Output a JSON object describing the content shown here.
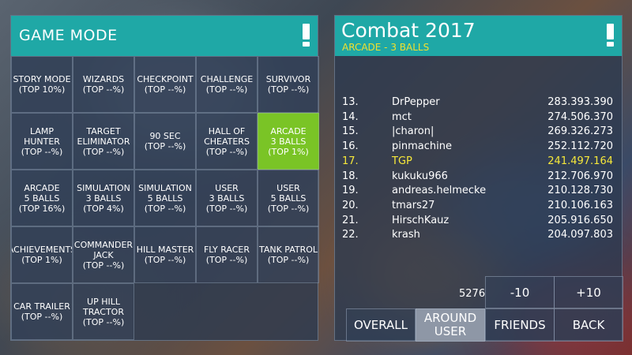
{
  "game_mode_panel": {
    "title": "GAME MODE",
    "cells": [
      {
        "line1": "STORY MODE",
        "line2": "(TOP 10%)",
        "line3": ""
      },
      {
        "line1": "WIZARDS",
        "line2": "(TOP --%)",
        "line3": ""
      },
      {
        "line1": "CHECKPOINT",
        "line2": "(TOP --%)",
        "line3": ""
      },
      {
        "line1": "CHALLENGE",
        "line2": "(TOP --%)",
        "line3": ""
      },
      {
        "line1": "SURVIVOR",
        "line2": "(TOP --%)",
        "line3": ""
      },
      {
        "line1": "LAMP",
        "line2": "HUNTER",
        "line3": "(TOP --%)"
      },
      {
        "line1": "TARGET",
        "line2": "ELIMINATOR",
        "line3": "(TOP --%)"
      },
      {
        "line1": "90 SEC",
        "line2": "(TOP --%)",
        "line3": ""
      },
      {
        "line1": "HALL OF",
        "line2": "CHEATERS",
        "line3": "(TOP --%)"
      },
      {
        "line1": "ARCADE",
        "line2": "3 BALLS",
        "line3": "(TOP 1%)"
      },
      {
        "line1": "ARCADE",
        "line2": "5 BALLS",
        "line3": "(TOP 16%)"
      },
      {
        "line1": "SIMULATION",
        "line2": "3 BALLS",
        "line3": "(TOP 4%)"
      },
      {
        "line1": "SIMULATION",
        "line2": "5 BALLS",
        "line3": "(TOP --%)"
      },
      {
        "line1": "USER",
        "line2": "3 BALLS",
        "line3": "(TOP --%)"
      },
      {
        "line1": "USER",
        "line2": "5 BALLS",
        "line3": "(TOP --%)"
      },
      {
        "line1": "ACHIEVEMENTS",
        "line2": "(TOP 1%)",
        "line3": ""
      },
      {
        "line1": "COMMANDER",
        "line2": "JACK",
        "line3": "(TOP --%)"
      },
      {
        "line1": "HILL MASTER",
        "line2": "(TOP --%)",
        "line3": ""
      },
      {
        "line1": "FLY RACER",
        "line2": "(TOP --%)",
        "line3": ""
      },
      {
        "line1": "TANK PATROL",
        "line2": "(TOP --%)",
        "line3": ""
      },
      {
        "line1": "CAR TRAILER",
        "line2": "(TOP --%)",
        "line3": ""
      },
      {
        "line1": "UP HILL",
        "line2": "TRACTOR",
        "line3": "(TOP --%)"
      }
    ],
    "selected_index": 9
  },
  "leaderboard_panel": {
    "title": "Combat 2017",
    "subtitle": "ARCADE - 3 BALLS",
    "rows": [
      {
        "rank": "13.",
        "name": "DrPepper",
        "score": "283.393.390"
      },
      {
        "rank": "14.",
        "name": "mct",
        "score": "274.506.370"
      },
      {
        "rank": "15.",
        "name": "|charon|",
        "score": "269.326.273"
      },
      {
        "rank": "16.",
        "name": "pinmachine",
        "score": "252.112.720"
      },
      {
        "rank": "17.",
        "name": "TGP",
        "score": "241.497.164"
      },
      {
        "rank": "18.",
        "name": "kukuku966",
        "score": "212.706.970"
      },
      {
        "rank": "19.",
        "name": "andreas.helmecke",
        "score": "210.128.730"
      },
      {
        "rank": "20.",
        "name": "tmars27",
        "score": "210.106.163"
      },
      {
        "rank": "21.",
        "name": "HirschKauz",
        "score": "205.916.650"
      },
      {
        "rank": "22.",
        "name": "krash",
        "score": "204.097.803"
      }
    ],
    "highlight_index": 4,
    "count": "5276",
    "minus_label": "-10",
    "plus_label": "+10",
    "tabs": {
      "overall": "OVERALL",
      "around_user_1": "AROUND",
      "around_user_2": "USER",
      "friends": "FRIENDS",
      "back": "BACK"
    }
  },
  "colors": {
    "header": "#1fa8a6",
    "selected_cell": "#7ac426",
    "highlight_row": "#f6e83a",
    "active_tab": "#8e97a6"
  }
}
